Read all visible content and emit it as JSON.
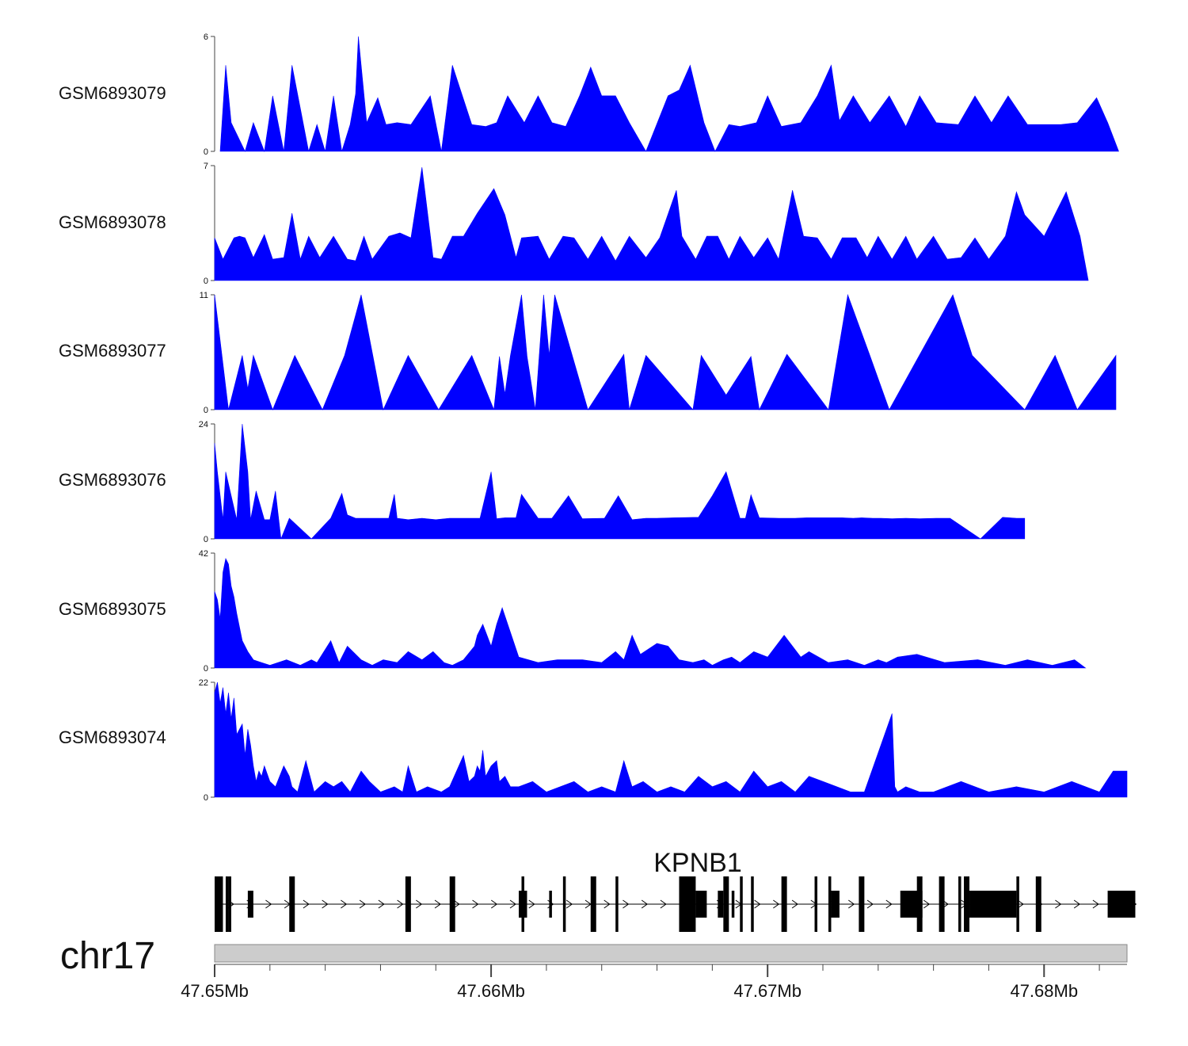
{
  "colors": {
    "signal": "#0000ff",
    "gene": "#000000",
    "ideogram": "#cccccc",
    "axis": "#444444"
  },
  "chart_data": {
    "type": "area",
    "title": "",
    "xlabel": "",
    "ylabel": "",
    "x_range": [
      47.65,
      47.683
    ],
    "x_unit": "Mb",
    "x_ticks": [
      47.65,
      47.66,
      47.67,
      47.68
    ],
    "x_tick_labels": [
      "47.65Mb",
      "47.66Mb",
      "47.67Mb",
      "47.68Mb"
    ],
    "series": [
      {
        "name": "GSM6893079",
        "ylim": [
          0,
          6
        ],
        "y_tick_labels": [
          "0",
          "6"
        ],
        "x": [
          47.6502,
          47.6504,
          47.6506,
          47.6511,
          47.6514,
          47.6518,
          47.6521,
          47.6525,
          47.6528,
          47.6534,
          47.6537,
          47.654,
          47.6543,
          47.6546,
          47.6549,
          47.6551,
          47.6552,
          47.6555,
          47.6559,
          47.6562,
          47.6566,
          47.6571,
          47.6578,
          47.6582,
          47.6586,
          47.6593,
          47.6598,
          47.6602,
          47.6606,
          47.6612,
          47.6617,
          47.6622,
          47.6627,
          47.6632,
          47.6636,
          47.664,
          47.6645,
          47.665,
          47.6656,
          47.6664,
          47.6668,
          47.6672,
          47.6677,
          47.6681,
          47.6686,
          47.669,
          47.6696,
          47.67,
          47.6705,
          47.6712,
          47.6718,
          47.6723,
          47.6726,
          47.6731,
          47.6737,
          47.6744,
          47.675,
          47.6755,
          47.6761,
          47.6769,
          47.6775,
          47.6781,
          47.6787,
          47.6794,
          47.68,
          47.6806,
          47.6812,
          47.6819,
          47.6823,
          47.6827
        ],
        "y": [
          0,
          4.5,
          1.5,
          0,
          1.5,
          0,
          2.9,
          0,
          4.5,
          0,
          1.4,
          0,
          2.9,
          0,
          1.4,
          3,
          6,
          1.5,
          2.8,
          1.4,
          1.5,
          1.4,
          2.9,
          0,
          4.5,
          1.4,
          1.3,
          1.5,
          2.9,
          1.5,
          2.9,
          1.5,
          1.3,
          2.9,
          4.4,
          2.9,
          2.9,
          1.5,
          0,
          2.9,
          3.2,
          4.5,
          1.5,
          0,
          1.4,
          1.3,
          1.5,
          2.9,
          1.3,
          1.5,
          2.9,
          4.5,
          1.6,
          2.9,
          1.5,
          2.9,
          1.3,
          2.9,
          1.5,
          1.4,
          2.9,
          1.5,
          2.9,
          1.4,
          1.4,
          1.4,
          1.5,
          2.8,
          1.5,
          0
        ]
      },
      {
        "name": "GSM6893078",
        "ylim": [
          0,
          7
        ],
        "y_tick_labels": [
          "0",
          "7"
        ],
        "x": [
          47.65,
          47.6503,
          47.6507,
          47.6509,
          47.6511,
          47.6514,
          47.6518,
          47.6521,
          47.6525,
          47.6528,
          47.6531,
          47.6534,
          47.6538,
          47.6543,
          47.6548,
          47.6551,
          47.6554,
          47.6557,
          47.6563,
          47.6567,
          47.6571,
          47.6575,
          47.6579,
          47.6582,
          47.6586,
          47.659,
          47.6595,
          47.6601,
          47.6605,
          47.6609,
          47.6611,
          47.6617,
          47.6621,
          47.6626,
          47.663,
          47.6635,
          47.664,
          47.6645,
          47.665,
          47.6656,
          47.6661,
          47.6667,
          47.6669,
          47.6674,
          47.6678,
          47.6682,
          47.6686,
          47.669,
          47.6695,
          47.67,
          47.6704,
          47.6709,
          47.6713,
          47.6718,
          47.6723,
          47.6727,
          47.6732,
          47.6736,
          47.674,
          47.6745,
          47.675,
          47.6754,
          47.676,
          47.6765,
          47.677,
          47.6775,
          47.678,
          47.6786,
          47.679,
          47.6793,
          47.68,
          47.6808,
          47.6813,
          47.6816
        ],
        "y": [
          2.6,
          1.3,
          2.6,
          2.7,
          2.6,
          1.4,
          2.8,
          1.3,
          1.4,
          4.1,
          1.3,
          2.7,
          1.4,
          2.7,
          1.3,
          1.2,
          2.7,
          1.3,
          2.7,
          2.9,
          2.6,
          6.9,
          1.4,
          1.3,
          2.7,
          2.7,
          4.1,
          5.6,
          4,
          1.4,
          2.6,
          2.7,
          1.3,
          2.7,
          2.6,
          1.3,
          2.7,
          1.2,
          2.7,
          1.4,
          2.6,
          5.5,
          2.7,
          1.3,
          2.7,
          2.7,
          1.3,
          2.7,
          1.4,
          2.6,
          1.3,
          5.5,
          2.7,
          2.6,
          1.3,
          2.6,
          2.6,
          1.4,
          2.7,
          1.3,
          2.7,
          1.3,
          2.7,
          1.3,
          1.4,
          2.6,
          1.3,
          2.7,
          5.4,
          4,
          2.7,
          5.4,
          2.7,
          0
        ]
      },
      {
        "name": "GSM6893077",
        "ylim": [
          0,
          11
        ],
        "y_tick_labels": [
          "0",
          "11"
        ],
        "x": [
          47.65,
          47.6505,
          47.651,
          47.6512,
          47.6514,
          47.6521,
          47.6529,
          47.6539,
          47.6547,
          47.6553,
          47.6561,
          47.657,
          47.6581,
          47.6593,
          47.6601,
          47.6603,
          47.6605,
          47.6607,
          47.6611,
          47.6613,
          47.6616,
          47.6619,
          47.6621,
          47.6623,
          47.6635,
          47.6648,
          47.665,
          47.6656,
          47.6673,
          47.6676,
          47.6685,
          47.6694,
          47.6697,
          47.6707,
          47.6722,
          47.6729,
          47.6737,
          47.6744,
          47.6767,
          47.6774,
          47.6793,
          47.6804,
          47.6812,
          47.6826
        ],
        "y": [
          11,
          0,
          5.2,
          2,
          5.2,
          0,
          5.2,
          0,
          5.2,
          11,
          0,
          5.2,
          0,
          5.2,
          0,
          5.1,
          1.5,
          5.2,
          11,
          5.1,
          0,
          11,
          5.2,
          11,
          0,
          5.3,
          0,
          5.2,
          0,
          5.2,
          1.4,
          5.1,
          0,
          5.3,
          0,
          11,
          5.2,
          0,
          11,
          5.2,
          0,
          5.2,
          0,
          5.2
        ]
      },
      {
        "name": "GSM6893076",
        "ylim": [
          0,
          24
        ],
        "y_tick_labels": [
          "0",
          "24"
        ],
        "x": [
          47.65,
          47.6501,
          47.6503,
          47.6504,
          47.6506,
          47.6508,
          47.651,
          47.6511,
          47.6512,
          47.6513,
          47.6515,
          47.6518,
          47.652,
          47.6522,
          47.6524,
          47.6527,
          47.6535,
          47.6542,
          47.6546,
          47.6548,
          47.6551,
          47.6557,
          47.6563,
          47.6565,
          47.6566,
          47.657,
          47.6575,
          47.658,
          47.6585,
          47.659,
          47.6596,
          47.66,
          47.6602,
          47.6605,
          47.6609,
          47.6611,
          47.6617,
          47.6622,
          47.6628,
          47.6633,
          47.6641,
          47.6646,
          47.6651,
          47.6656,
          47.666,
          47.6666,
          47.6675,
          47.668,
          47.6685,
          47.669,
          47.6692,
          47.6694,
          47.6697,
          47.6704,
          47.671,
          47.6714,
          47.6718,
          47.6722,
          47.6727,
          47.6731,
          47.6734,
          47.6738,
          47.6741,
          47.6745,
          47.675,
          47.6755,
          47.6761,
          47.6766,
          47.6777,
          47.6785,
          47.679,
          47.6793
        ],
        "y": [
          20,
          14,
          4,
          14,
          9,
          4,
          24,
          19,
          14,
          4,
          10,
          4,
          4,
          10,
          0,
          4.3,
          0,
          4.3,
          9.5,
          5,
          4.3,
          4.3,
          4.3,
          9.3,
          4.3,
          4,
          4.3,
          4,
          4.3,
          4.3,
          4.3,
          14,
          4.2,
          4.4,
          4.4,
          9.3,
          4.3,
          4.3,
          9,
          4.2,
          4.3,
          9,
          4,
          4.3,
          4.3,
          4.4,
          4.5,
          9,
          14,
          4.3,
          4.3,
          9.2,
          4.4,
          4.3,
          4.3,
          4.4,
          4.4,
          4.4,
          4.4,
          4.3,
          4.4,
          4.3,
          4.3,
          4.2,
          4.3,
          4.2,
          4.3,
          4.3,
          0,
          4.5,
          4.3,
          4.3
        ]
      },
      {
        "name": "GSM6893075",
        "ylim": [
          0,
          42
        ],
        "y_tick_labels": [
          "0",
          "42"
        ],
        "x": [
          47.65,
          47.6501,
          47.6502,
          47.6503,
          47.6504,
          47.6505,
          47.6506,
          47.6507,
          47.6508,
          47.651,
          47.6512,
          47.6514,
          47.6517,
          47.652,
          47.6526,
          47.6531,
          47.6535,
          47.6537,
          47.6542,
          47.6545,
          47.6548,
          47.6553,
          47.6557,
          47.6561,
          47.6566,
          47.657,
          47.6575,
          47.6579,
          47.6583,
          47.6586,
          47.659,
          47.6594,
          47.6595,
          47.6597,
          47.66,
          47.6602,
          47.6604,
          47.661,
          47.6617,
          47.6624,
          47.6633,
          47.664,
          47.6645,
          47.6648,
          47.6651,
          47.6654,
          47.666,
          47.6664,
          47.6668,
          47.6673,
          47.6677,
          47.668,
          47.6684,
          47.6687,
          47.669,
          47.6695,
          47.67,
          47.6706,
          47.6712,
          47.6715,
          47.6722,
          47.6729,
          47.6735,
          47.674,
          47.6743,
          47.6747,
          47.6754,
          47.6764,
          47.6776,
          47.6786,
          47.6794,
          47.6803,
          47.6811,
          47.6815
        ],
        "y": [
          28,
          25,
          18,
          35,
          40,
          38,
          30,
          26,
          20,
          10,
          6,
          3,
          2,
          1,
          3,
          1,
          3,
          2,
          10,
          2,
          8,
          3,
          1,
          3,
          2,
          6,
          3,
          6,
          2,
          1,
          3,
          8,
          12,
          16,
          8,
          16,
          22,
          4,
          2,
          3,
          3,
          2,
          6,
          3,
          12,
          5,
          9,
          8,
          3,
          2,
          3,
          1,
          3,
          4,
          2,
          6,
          4,
          12,
          4,
          6,
          2,
          3,
          1,
          3,
          2,
          4,
          5,
          2,
          3,
          1,
          3,
          1,
          3,
          0
        ]
      }
    ]
  },
  "track_labels": [
    "GSM6893079",
    "GSM6893078",
    "GSM6893077",
    "GSM6893076",
    "GSM6893075",
    "GSM6893074"
  ],
  "track_74": {
    "name": "GSM6893074",
    "ylim": [
      0,
      22
    ],
    "y_tick_labels": [
      "0",
      "22"
    ],
    "x": [
      47.65,
      47.6501,
      47.6502,
      47.6503,
      47.6504,
      47.6505,
      47.6506,
      47.6507,
      47.6508,
      47.651,
      47.6511,
      47.6512,
      47.6513,
      47.6514,
      47.6515,
      47.6516,
      47.6517,
      47.6518,
      47.652,
      47.6522,
      47.6525,
      47.6527,
      47.6528,
      47.653,
      47.6533,
      47.6536,
      47.654,
      47.6543,
      47.6546,
      47.6549,
      47.6553,
      47.6556,
      47.656,
      47.6565,
      47.6568,
      47.657,
      47.6573,
      47.6577,
      47.6582,
      47.6585,
      47.659,
      47.6592,
      47.6594,
      47.6595,
      47.6596,
      47.6597,
      47.6598,
      47.66,
      47.6602,
      47.6603,
      47.6605,
      47.6607,
      47.661,
      47.6615,
      47.662,
      47.6625,
      47.663,
      47.6635,
      47.664,
      47.6645,
      47.6648,
      47.6651,
      47.6655,
      47.666,
      47.6665,
      47.667,
      47.6675,
      47.668,
      47.6685,
      47.669,
      47.6695,
      47.67,
      47.6705,
      47.671,
      47.6715,
      47.672,
      47.6725,
      47.673,
      47.6735,
      47.6745,
      47.6746,
      47.6747,
      47.675,
      47.6755,
      47.676,
      47.677,
      47.678,
      47.679,
      47.68,
      47.681,
      47.682,
      47.6825,
      47.683
    ],
    "y": [
      20,
      22,
      18,
      21,
      16,
      20,
      15,
      19,
      12,
      14,
      8,
      13,
      10,
      6,
      3,
      5,
      4,
      6,
      3,
      2,
      6,
      4,
      2,
      1,
      7,
      1,
      3,
      2,
      3,
      1,
      5,
      3,
      1,
      2,
      1,
      6,
      1,
      2,
      1,
      2,
      8,
      3,
      4,
      6,
      5,
      9,
      4,
      6,
      7,
      3,
      4,
      2,
      2,
      3,
      1,
      2,
      3,
      1,
      2,
      1,
      7,
      2,
      3,
      1,
      2,
      1,
      4,
      2,
      3,
      1,
      5,
      2,
      3,
      1,
      4,
      3,
      2,
      1,
      1,
      16,
      2,
      1,
      2,
      1,
      1,
      3,
      1,
      2,
      1,
      3,
      1,
      5,
      5
    ]
  },
  "genome": {
    "gene_name": "KPNB1",
    "chrom": "chr17",
    "exons": [
      [
        47.65,
        47.6503,
        "tall"
      ],
      [
        47.6504,
        47.6505,
        "tall"
      ],
      [
        47.6505,
        47.6506,
        "tall"
      ],
      [
        47.6512,
        47.6514,
        "short"
      ],
      [
        47.6527,
        47.6529,
        "tall"
      ],
      [
        47.6569,
        47.6571,
        "tall"
      ],
      [
        47.6585,
        47.6587,
        "tall"
      ],
      [
        47.661,
        47.6613,
        "short"
      ],
      [
        47.6611,
        47.6612,
        "tall"
      ],
      [
        47.6621,
        47.6622,
        "short"
      ],
      [
        47.6626,
        47.6627,
        "tall"
      ],
      [
        47.6636,
        47.6638,
        "tall"
      ],
      [
        47.6645,
        47.6646,
        "tall"
      ],
      [
        47.6668,
        47.6674,
        "tall"
      ],
      [
        47.6674,
        47.6678,
        "short"
      ],
      [
        47.6682,
        47.6684,
        "short"
      ],
      [
        47.6684,
        47.6686,
        "tall"
      ],
      [
        47.6687,
        47.6688,
        "short"
      ],
      [
        47.669,
        47.6691,
        "tall"
      ],
      [
        47.6694,
        47.6695,
        "tall"
      ],
      [
        47.6705,
        47.6707,
        "tall"
      ],
      [
        47.6717,
        47.6718,
        "tall"
      ],
      [
        47.6722,
        47.6723,
        "tall"
      ],
      [
        47.6723,
        47.6726,
        "short"
      ],
      [
        47.6733,
        47.6735,
        "tall"
      ],
      [
        47.6748,
        47.6756,
        "short"
      ],
      [
        47.6754,
        47.6756,
        "tall"
      ],
      [
        47.6762,
        47.6764,
        "tall"
      ],
      [
        47.6769,
        47.677,
        "tall"
      ],
      [
        47.6771,
        47.6773,
        "tall"
      ],
      [
        47.6773,
        47.679,
        "short"
      ],
      [
        47.679,
        47.6791,
        "tall"
      ],
      [
        47.6797,
        47.6799,
        "tall"
      ],
      [
        47.6823,
        47.6833,
        "short"
      ]
    ],
    "intron_span": [
      47.65,
      47.6833
    ]
  }
}
